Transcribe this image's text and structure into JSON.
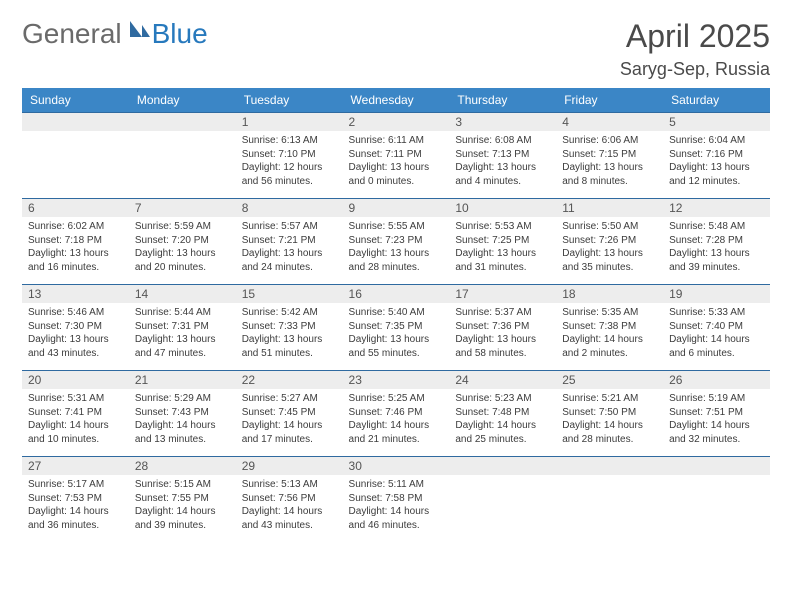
{
  "logo": {
    "general": "General",
    "blue": "Blue"
  },
  "title": "April 2025",
  "subtitle": "Saryg-Sep, Russia",
  "colors": {
    "header_bg": "#3b86c6",
    "header_fg": "#ffffff",
    "daynum_bg": "#ededed",
    "border": "#2f6aa0",
    "logo_gray": "#6a6a6a",
    "logo_blue": "#2779bd"
  },
  "weekdays": [
    "Sunday",
    "Monday",
    "Tuesday",
    "Wednesday",
    "Thursday",
    "Friday",
    "Saturday"
  ],
  "weeks": [
    [
      null,
      null,
      {
        "n": "1",
        "sr": "Sunrise: 6:13 AM",
        "ss": "Sunset: 7:10 PM",
        "d1": "Daylight: 12 hours",
        "d2": "and 56 minutes."
      },
      {
        "n": "2",
        "sr": "Sunrise: 6:11 AM",
        "ss": "Sunset: 7:11 PM",
        "d1": "Daylight: 13 hours",
        "d2": "and 0 minutes."
      },
      {
        "n": "3",
        "sr": "Sunrise: 6:08 AM",
        "ss": "Sunset: 7:13 PM",
        "d1": "Daylight: 13 hours",
        "d2": "and 4 minutes."
      },
      {
        "n": "4",
        "sr": "Sunrise: 6:06 AM",
        "ss": "Sunset: 7:15 PM",
        "d1": "Daylight: 13 hours",
        "d2": "and 8 minutes."
      },
      {
        "n": "5",
        "sr": "Sunrise: 6:04 AM",
        "ss": "Sunset: 7:16 PM",
        "d1": "Daylight: 13 hours",
        "d2": "and 12 minutes."
      }
    ],
    [
      {
        "n": "6",
        "sr": "Sunrise: 6:02 AM",
        "ss": "Sunset: 7:18 PM",
        "d1": "Daylight: 13 hours",
        "d2": "and 16 minutes."
      },
      {
        "n": "7",
        "sr": "Sunrise: 5:59 AM",
        "ss": "Sunset: 7:20 PM",
        "d1": "Daylight: 13 hours",
        "d2": "and 20 minutes."
      },
      {
        "n": "8",
        "sr": "Sunrise: 5:57 AM",
        "ss": "Sunset: 7:21 PM",
        "d1": "Daylight: 13 hours",
        "d2": "and 24 minutes."
      },
      {
        "n": "9",
        "sr": "Sunrise: 5:55 AM",
        "ss": "Sunset: 7:23 PM",
        "d1": "Daylight: 13 hours",
        "d2": "and 28 minutes."
      },
      {
        "n": "10",
        "sr": "Sunrise: 5:53 AM",
        "ss": "Sunset: 7:25 PM",
        "d1": "Daylight: 13 hours",
        "d2": "and 31 minutes."
      },
      {
        "n": "11",
        "sr": "Sunrise: 5:50 AM",
        "ss": "Sunset: 7:26 PM",
        "d1": "Daylight: 13 hours",
        "d2": "and 35 minutes."
      },
      {
        "n": "12",
        "sr": "Sunrise: 5:48 AM",
        "ss": "Sunset: 7:28 PM",
        "d1": "Daylight: 13 hours",
        "d2": "and 39 minutes."
      }
    ],
    [
      {
        "n": "13",
        "sr": "Sunrise: 5:46 AM",
        "ss": "Sunset: 7:30 PM",
        "d1": "Daylight: 13 hours",
        "d2": "and 43 minutes."
      },
      {
        "n": "14",
        "sr": "Sunrise: 5:44 AM",
        "ss": "Sunset: 7:31 PM",
        "d1": "Daylight: 13 hours",
        "d2": "and 47 minutes."
      },
      {
        "n": "15",
        "sr": "Sunrise: 5:42 AM",
        "ss": "Sunset: 7:33 PM",
        "d1": "Daylight: 13 hours",
        "d2": "and 51 minutes."
      },
      {
        "n": "16",
        "sr": "Sunrise: 5:40 AM",
        "ss": "Sunset: 7:35 PM",
        "d1": "Daylight: 13 hours",
        "d2": "and 55 minutes."
      },
      {
        "n": "17",
        "sr": "Sunrise: 5:37 AM",
        "ss": "Sunset: 7:36 PM",
        "d1": "Daylight: 13 hours",
        "d2": "and 58 minutes."
      },
      {
        "n": "18",
        "sr": "Sunrise: 5:35 AM",
        "ss": "Sunset: 7:38 PM",
        "d1": "Daylight: 14 hours",
        "d2": "and 2 minutes."
      },
      {
        "n": "19",
        "sr": "Sunrise: 5:33 AM",
        "ss": "Sunset: 7:40 PM",
        "d1": "Daylight: 14 hours",
        "d2": "and 6 minutes."
      }
    ],
    [
      {
        "n": "20",
        "sr": "Sunrise: 5:31 AM",
        "ss": "Sunset: 7:41 PM",
        "d1": "Daylight: 14 hours",
        "d2": "and 10 minutes."
      },
      {
        "n": "21",
        "sr": "Sunrise: 5:29 AM",
        "ss": "Sunset: 7:43 PM",
        "d1": "Daylight: 14 hours",
        "d2": "and 13 minutes."
      },
      {
        "n": "22",
        "sr": "Sunrise: 5:27 AM",
        "ss": "Sunset: 7:45 PM",
        "d1": "Daylight: 14 hours",
        "d2": "and 17 minutes."
      },
      {
        "n": "23",
        "sr": "Sunrise: 5:25 AM",
        "ss": "Sunset: 7:46 PM",
        "d1": "Daylight: 14 hours",
        "d2": "and 21 minutes."
      },
      {
        "n": "24",
        "sr": "Sunrise: 5:23 AM",
        "ss": "Sunset: 7:48 PM",
        "d1": "Daylight: 14 hours",
        "d2": "and 25 minutes."
      },
      {
        "n": "25",
        "sr": "Sunrise: 5:21 AM",
        "ss": "Sunset: 7:50 PM",
        "d1": "Daylight: 14 hours",
        "d2": "and 28 minutes."
      },
      {
        "n": "26",
        "sr": "Sunrise: 5:19 AM",
        "ss": "Sunset: 7:51 PM",
        "d1": "Daylight: 14 hours",
        "d2": "and 32 minutes."
      }
    ],
    [
      {
        "n": "27",
        "sr": "Sunrise: 5:17 AM",
        "ss": "Sunset: 7:53 PM",
        "d1": "Daylight: 14 hours",
        "d2": "and 36 minutes."
      },
      {
        "n": "28",
        "sr": "Sunrise: 5:15 AM",
        "ss": "Sunset: 7:55 PM",
        "d1": "Daylight: 14 hours",
        "d2": "and 39 minutes."
      },
      {
        "n": "29",
        "sr": "Sunrise: 5:13 AM",
        "ss": "Sunset: 7:56 PM",
        "d1": "Daylight: 14 hours",
        "d2": "and 43 minutes."
      },
      {
        "n": "30",
        "sr": "Sunrise: 5:11 AM",
        "ss": "Sunset: 7:58 PM",
        "d1": "Daylight: 14 hours",
        "d2": "and 46 minutes."
      },
      null,
      null,
      null
    ]
  ]
}
